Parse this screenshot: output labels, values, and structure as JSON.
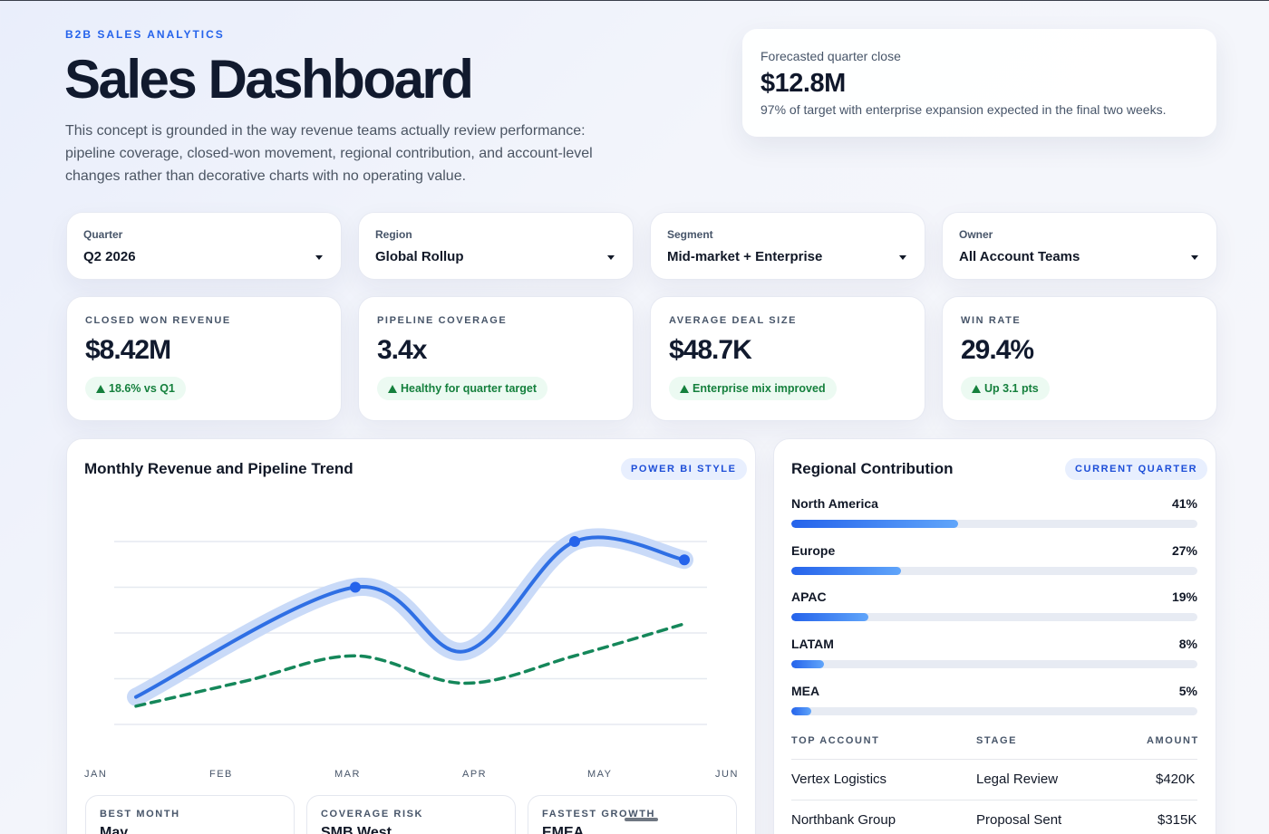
{
  "header": {
    "eyebrow": "B2B SALES ANALYTICS",
    "title": "Sales Dashboard",
    "intro": "This concept is grounded in the way revenue teams actually review performance: pipeline coverage, closed-won movement, regional contribution, and account-level changes rather than decorative charts with no operating value."
  },
  "forecast": {
    "label": "Forecasted quarter close",
    "value": "$12.8M",
    "note": "97% of target with enterprise expansion expected in the final two weeks."
  },
  "filters": [
    {
      "label": "Quarter",
      "value": "Q2 2026"
    },
    {
      "label": "Region",
      "value": "Global Rollup"
    },
    {
      "label": "Segment",
      "value": "Mid-market + Enterprise"
    },
    {
      "label": "Owner",
      "value": "All Account Teams"
    }
  ],
  "kpis": [
    {
      "label": "CLOSED WON REVENUE",
      "value": "$8.42M",
      "badge": "18.6% vs Q1"
    },
    {
      "label": "PIPELINE COVERAGE",
      "value": "3.4x",
      "badge": "Healthy for quarter target"
    },
    {
      "label": "AVERAGE DEAL SIZE",
      "value": "$48.7K",
      "badge": "Enterprise mix improved"
    },
    {
      "label": "WIN RATE",
      "value": "29.4%",
      "badge": "Up 3.1 pts"
    }
  ],
  "trend": {
    "title": "Monthly Revenue and Pipeline Trend",
    "pill": "POWER BI STYLE",
    "months": [
      "JAN",
      "FEB",
      "MAR",
      "APR",
      "MAY",
      "JUN"
    ]
  },
  "chart_data": {
    "type": "line",
    "x": [
      "JAN",
      "MAR",
      "MAY",
      "JUN"
    ],
    "series": [
      {
        "values": [
          0.6,
          3.0,
          4.0,
          3.6
        ],
        "style": "solid",
        "color": "#2563eb"
      },
      {
        "values": [
          0.4,
          1.5,
          1.5,
          2.2
        ],
        "style": "dashed",
        "color": "#15803d"
      }
    ],
    "ylim": [
      0,
      4
    ],
    "grid": true
  },
  "highlights": [
    {
      "label": "BEST MONTH",
      "value": "May"
    },
    {
      "label": "COVERAGE RISK",
      "value": "SMB West"
    },
    {
      "label": "FASTEST GROWTH",
      "value": "EMEA"
    }
  ],
  "regional": {
    "title": "Regional Contribution",
    "pill": "CURRENT QUARTER",
    "items": [
      {
        "name": "North America",
        "pct": "41%",
        "share": 41
      },
      {
        "name": "Europe",
        "pct": "27%",
        "share": 27
      },
      {
        "name": "APAC",
        "pct": "19%",
        "share": 19
      },
      {
        "name": "LATAM",
        "pct": "8%",
        "share": 8
      },
      {
        "name": "MEA",
        "pct": "5%",
        "share": 5
      }
    ]
  },
  "accounts": {
    "headers": [
      "TOP ACCOUNT",
      "STAGE",
      "AMOUNT"
    ],
    "rows": [
      {
        "account": "Vertex Logistics",
        "stage": "Legal Review",
        "amount": "$420K"
      },
      {
        "account": "Northbank Group",
        "stage": "Proposal Sent",
        "amount": "$315K"
      }
    ]
  },
  "colors": {
    "accent": "#2563eb",
    "positive": "#15803d",
    "positive_bg": "#ecfaf2"
  }
}
